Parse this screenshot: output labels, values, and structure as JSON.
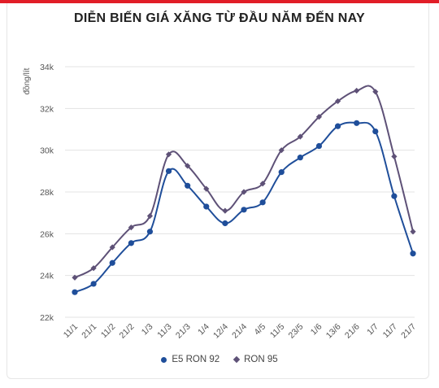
{
  "colors": {
    "accent_bar": "#e11d27",
    "e5_series": "#1f4e9a",
    "ron95_series": "#5e5177",
    "grid": "#e3e3e3",
    "axis": "#555555"
  },
  "chart_data": {
    "type": "line",
    "title": "DIỄN BIẾN GIÁ XĂNG TỪ ĐẦU NĂM ĐẾN NAY",
    "xlabel": "",
    "ylabel": "đồng/lít",
    "ylim": [
      22000,
      34000
    ],
    "yticks": [
      22000,
      24000,
      26000,
      28000,
      30000,
      32000,
      34000
    ],
    "ytick_labels": [
      "22k",
      "24k",
      "26k",
      "28k",
      "30k",
      "32k",
      "34k"
    ],
    "grid": true,
    "legend_position": "bottom-center",
    "categories": [
      "11/1",
      "21/1",
      "11/2",
      "21/2",
      "1/3",
      "11/3",
      "21/3",
      "1/4",
      "12/4",
      "21/4",
      "4/5",
      "11/5",
      "23/5",
      "1/6",
      "13/6",
      "21/6",
      "1/7",
      "11/7",
      "21/7"
    ],
    "series": [
      {
        "name": "E5 RON 92",
        "marker": "circle",
        "values": [
          23200,
          23600,
          24600,
          25550,
          26100,
          29000,
          28300,
          27300,
          26500,
          27150,
          27500,
          28950,
          29650,
          30200,
          31150,
          31300,
          30900,
          27800,
          25050
        ]
      },
      {
        "name": "RON 95",
        "marker": "diamond",
        "values": [
          23900,
          24350,
          25350,
          26300,
          26850,
          29800,
          29250,
          28150,
          27100,
          28000,
          28400,
          30000,
          30650,
          31600,
          32350,
          32850,
          32800,
          29700,
          26100
        ]
      }
    ]
  }
}
